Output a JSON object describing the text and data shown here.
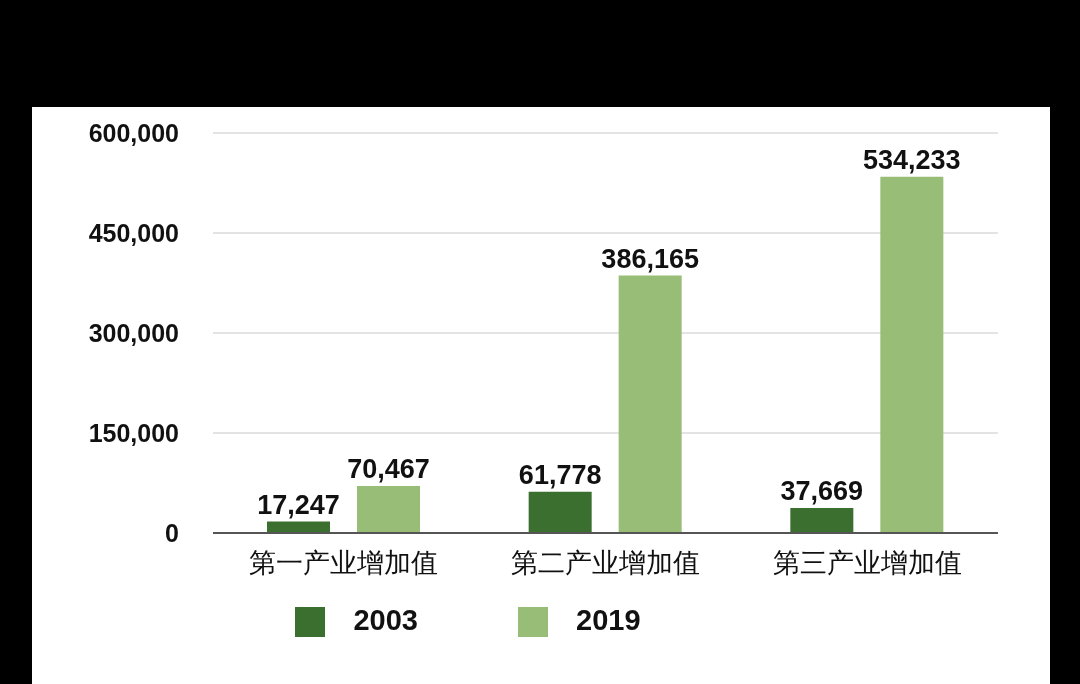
{
  "chart_data": {
    "type": "bar",
    "categories": [
      "第一产业增加值",
      "第二产业增加值",
      "第三产业增加值"
    ],
    "series": [
      {
        "name": "2003",
        "color": "#3a6f30",
        "values": [
          17247,
          61778,
          37669
        ],
        "value_labels": [
          "17,247",
          "61,778",
          "37,669"
        ]
      },
      {
        "name": "2019",
        "color": "#97bd76",
        "values": [
          70467,
          386165,
          534233
        ],
        "value_labels": [
          "70,467",
          "386,165",
          "534,233"
        ]
      }
    ],
    "ylim": [
      0,
      600000
    ],
    "yticks": [
      0,
      {
        "value": 150000,
        "label": "150,000"
      },
      {
        "value": 300000,
        "label": "300,000"
      },
      {
        "value": 450000,
        "label": "450,000"
      },
      {
        "value": 600000,
        "label": "600,000"
      }
    ],
    "grid": "y",
    "legend": "bottom"
  }
}
